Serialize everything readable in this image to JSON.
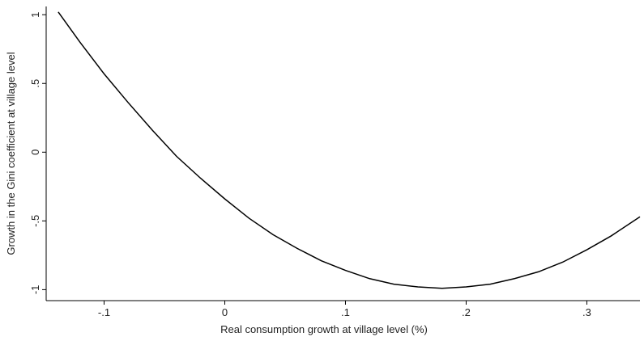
{
  "chart_data": {
    "type": "line",
    "xlabel": "Real consumption growth at village level (%)",
    "ylabel": "Growth in the Gini coefficient at village level",
    "x": [
      -0.138,
      -0.12,
      -0.1,
      -0.08,
      -0.06,
      -0.04,
      -0.02,
      0,
      0.02,
      0.04,
      0.06,
      0.08,
      0.1,
      0.12,
      0.14,
      0.16,
      0.18,
      0.2,
      0.22,
      0.24,
      0.26,
      0.28,
      0.3,
      0.32,
      0.344
    ],
    "series": [
      {
        "color": "#000000",
        "values": [
          1.02,
          0.8,
          0.57,
          0.36,
          0.16,
          -0.03,
          -0.19,
          -0.34,
          -0.48,
          -0.6,
          -0.7,
          -0.79,
          -0.86,
          -0.92,
          -0.96,
          -0.98,
          -0.99,
          -0.98,
          -0.96,
          -0.92,
          -0.87,
          -0.8,
          -0.71,
          -0.61,
          -0.47
        ]
      }
    ],
    "xlim": [
      -0.148,
      0.344
    ],
    "ylim": [
      -1.08,
      1.06
    ],
    "xticks": [
      {
        "value": -0.1,
        "label": "-.1"
      },
      0,
      {
        "value": 0.1,
        "label": ".1"
      },
      {
        "value": 0.2,
        "label": ".2"
      },
      {
        "value": 0.3,
        "label": ".3"
      }
    ],
    "yticks": [
      -1,
      {
        "value": -0.5,
        "label": "-.5"
      },
      0,
      {
        "value": 0.5,
        "label": ".5"
      },
      1
    ],
    "grid": false
  }
}
